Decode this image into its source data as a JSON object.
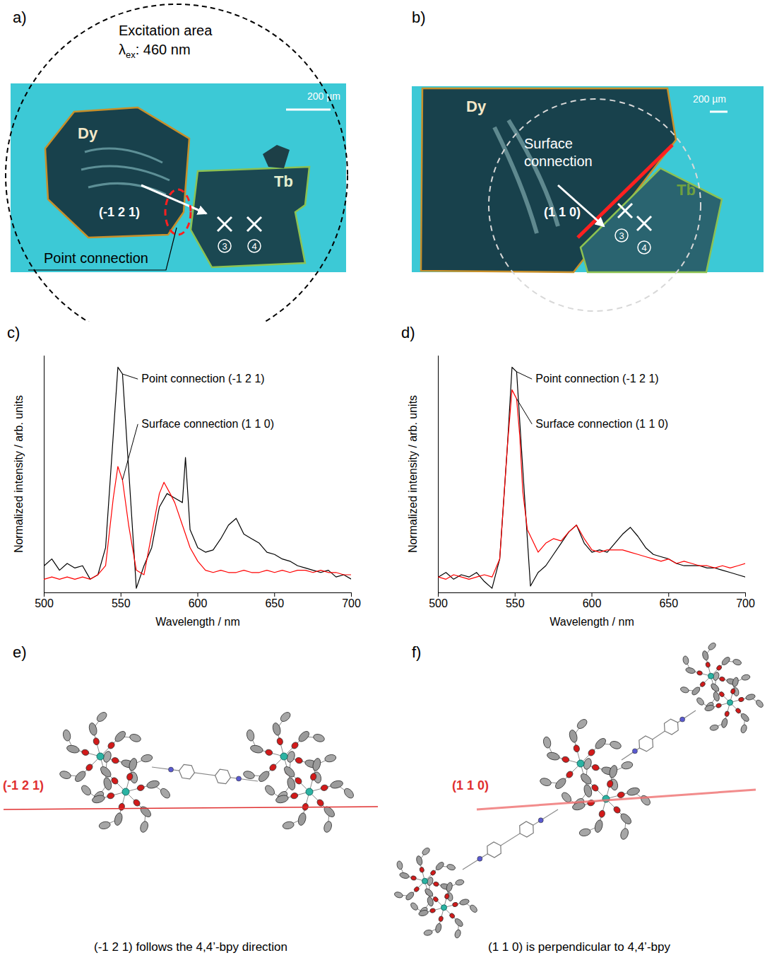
{
  "panels": {
    "a": {
      "letter": "a)",
      "excitation_label": "Excitation area",
      "excitation_wavelength": {
        "symbol": "λ",
        "subscript": "ex",
        "text": ": 460 nm"
      },
      "scale_bar": "200 µm",
      "crystals": [
        "Dy",
        "Tb"
      ],
      "plane": "(-1 2 1)",
      "connection": "Point connection",
      "spots": [
        3,
        4
      ]
    },
    "b": {
      "letter": "b)",
      "scale_bar": "200 µm",
      "crystals": [
        "Dy",
        "Tb"
      ],
      "plane": "(1 1 0)",
      "connection": "Surface connection",
      "spots": [
        3,
        4
      ]
    },
    "e": {
      "letter": "e)",
      "plane": "(-1 2 1)",
      "caption": "(-1 2 1) follows the 4,4’-bpy direction"
    },
    "f": {
      "letter": "f)",
      "plane": "(1 1 0)",
      "caption": "(1 1 0) is perpendicular to 4,4’-bpy"
    }
  },
  "chart_data": [
    {
      "panel_label": "c)",
      "type": "line",
      "x_label": "Wavelength / nm",
      "y_label": "Normalized intensity / arb. units",
      "xlim": [
        500,
        700
      ],
      "xticks": [
        500,
        550,
        600,
        650,
        700
      ],
      "ylim": [
        0,
        1.05
      ],
      "yticks": [],
      "tick_labels": "x",
      "series": [
        {
          "name": "Point connection (-1 2 1)",
          "color": "#000000",
          "x": [
            500,
            505,
            510,
            515,
            520,
            525,
            530,
            535,
            540,
            545,
            548,
            551,
            555,
            560,
            565,
            570,
            575,
            580,
            585,
            590,
            592,
            595,
            600,
            605,
            610,
            615,
            620,
            625,
            630,
            635,
            640,
            645,
            650,
            655,
            660,
            665,
            670,
            675,
            680,
            685,
            690,
            695,
            700
          ],
          "values": [
            0.12,
            0.15,
            0.1,
            0.13,
            0.11,
            0.12,
            0.06,
            0.08,
            0.2,
            0.7,
            1.0,
            0.97,
            0.55,
            0.02,
            0.12,
            0.2,
            0.38,
            0.44,
            0.42,
            0.4,
            0.6,
            0.28,
            0.2,
            0.18,
            0.19,
            0.24,
            0.3,
            0.33,
            0.26,
            0.24,
            0.22,
            0.18,
            0.17,
            0.15,
            0.14,
            0.12,
            0.11,
            0.1,
            0.09,
            0.1,
            0.07,
            0.08,
            0.06
          ]
        },
        {
          "name": "Surface connection (1 1 0)",
          "color": "#ff0000",
          "x": [
            500,
            505,
            510,
            515,
            520,
            525,
            530,
            535,
            540,
            545,
            548,
            551,
            555,
            560,
            565,
            570,
            575,
            578,
            582,
            585,
            590,
            595,
            600,
            605,
            610,
            615,
            620,
            625,
            630,
            635,
            640,
            645,
            650,
            655,
            660,
            665,
            670,
            675,
            680,
            685,
            690,
            695,
            700
          ],
          "values": [
            0.06,
            0.07,
            0.06,
            0.07,
            0.06,
            0.07,
            0.06,
            0.08,
            0.12,
            0.42,
            0.56,
            0.5,
            0.3,
            0.1,
            0.08,
            0.26,
            0.44,
            0.49,
            0.44,
            0.4,
            0.3,
            0.2,
            0.14,
            0.1,
            0.09,
            0.1,
            0.09,
            0.09,
            0.1,
            0.09,
            0.09,
            0.1,
            0.09,
            0.1,
            0.09,
            0.1,
            0.1,
            0.09,
            0.1,
            0.09,
            0.09,
            0.08,
            0.08
          ]
        }
      ]
    },
    {
      "panel_label": "d)",
      "type": "line",
      "x_label": "Wavelength / nm",
      "y_label": "Normalized intensity / arb. units",
      "xlim": [
        500,
        700
      ],
      "xticks": [
        500,
        550,
        600,
        650,
        700
      ],
      "ylim": [
        0,
        1.05
      ],
      "yticks": [],
      "tick_labels": "x",
      "series": [
        {
          "name": "Point connection (-1 2 1)",
          "color": "#000000",
          "x": [
            500,
            505,
            510,
            515,
            520,
            525,
            530,
            535,
            540,
            545,
            548,
            551,
            555,
            560,
            565,
            570,
            575,
            580,
            585,
            590,
            595,
            600,
            605,
            610,
            615,
            620,
            625,
            630,
            635,
            640,
            645,
            650,
            655,
            660,
            665,
            670,
            675,
            680,
            685,
            690,
            695,
            700
          ],
          "values": [
            0.07,
            0.09,
            0.06,
            0.08,
            0.07,
            0.09,
            0.05,
            0.02,
            0.15,
            0.65,
            1.0,
            0.98,
            0.55,
            0.03,
            0.09,
            0.12,
            0.17,
            0.22,
            0.27,
            0.3,
            0.22,
            0.18,
            0.19,
            0.18,
            0.22,
            0.26,
            0.29,
            0.25,
            0.2,
            0.17,
            0.16,
            0.15,
            0.13,
            0.12,
            0.12,
            0.12,
            0.11,
            0.11,
            0.1,
            0.09,
            0.08,
            0.07
          ]
        },
        {
          "name": "Surface connection (1 1 0)",
          "color": "#ff0000",
          "x": [
            500,
            505,
            510,
            515,
            520,
            525,
            530,
            535,
            540,
            545,
            548,
            551,
            553,
            555,
            558,
            565,
            570,
            575,
            580,
            585,
            590,
            595,
            600,
            605,
            610,
            615,
            620,
            625,
            630,
            635,
            640,
            645,
            650,
            655,
            660,
            665,
            670,
            675,
            680,
            685,
            690,
            695,
            700
          ],
          "values": [
            0.07,
            0.06,
            0.08,
            0.07,
            0.06,
            0.07,
            0.08,
            0.07,
            0.15,
            0.65,
            0.9,
            0.86,
            0.7,
            0.45,
            0.28,
            0.18,
            0.22,
            0.24,
            0.23,
            0.27,
            0.3,
            0.24,
            0.19,
            0.18,
            0.19,
            0.19,
            0.19,
            0.18,
            0.17,
            0.16,
            0.15,
            0.14,
            0.15,
            0.13,
            0.14,
            0.13,
            0.12,
            0.12,
            0.11,
            0.12,
            0.11,
            0.12,
            0.13
          ]
        }
      ]
    }
  ]
}
